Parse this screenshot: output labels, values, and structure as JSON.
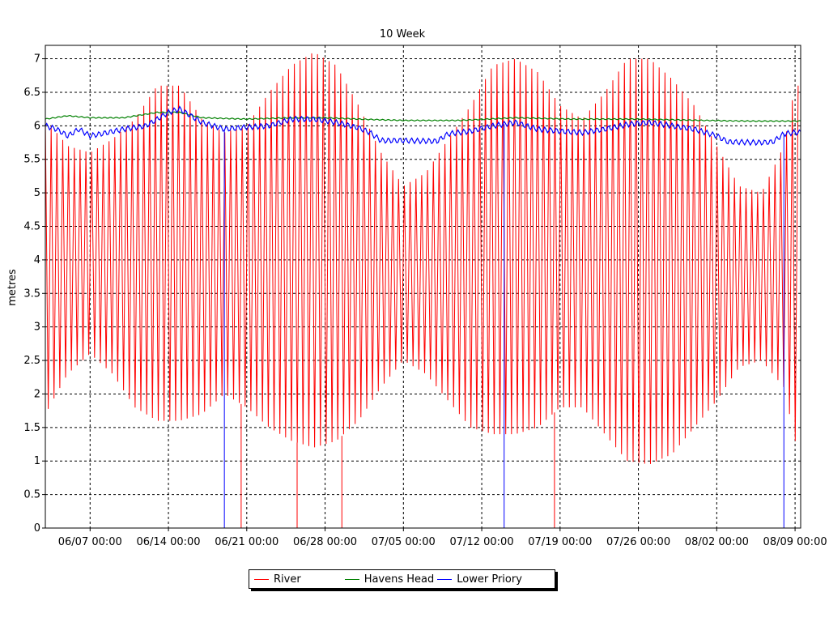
{
  "chart_data": {
    "type": "line",
    "title": "10 Week",
    "ylabel": "metres",
    "xlabel": "",
    "ylim": [
      0,
      7.2
    ],
    "yticks": [
      "0",
      "0.5",
      "1",
      "1.5",
      "2",
      "2.5",
      "3",
      "3.5",
      "4",
      "4.5",
      "5",
      "5.5",
      "6",
      "6.5",
      "7"
    ],
    "x_range": [
      "06/03 00:00",
      "08/09 12:00"
    ],
    "x_tick_labels": [
      "06/07 00:00",
      "06/14 00:00",
      "06/21 00:00",
      "06/28 00:00",
      "07/05 00:00",
      "07/12 00:00",
      "07/19 00:00",
      "07/26 00:00",
      "08/02 00:00",
      "08/09 00:00"
    ],
    "grid": true,
    "legend_position": "bottom-center",
    "series": [
      {
        "name": "River",
        "color": "#ff0000",
        "description_of_shape": "tidal oscillation, two cycles per day",
        "daily_extremes": [
          {
            "date": "06/03",
            "high": 6.1,
            "low": 1.7
          },
          {
            "date": "06/05",
            "high": 5.7,
            "low": 2.3
          },
          {
            "date": "06/07",
            "high": 5.6,
            "low": 2.6
          },
          {
            "date": "06/09",
            "high": 5.8,
            "low": 2.3
          },
          {
            "date": "06/11",
            "high": 6.1,
            "low": 1.8
          },
          {
            "date": "06/13",
            "high": 6.6,
            "low": 1.6
          },
          {
            "date": "06/15",
            "high": 6.6,
            "low": 1.6
          },
          {
            "date": "06/17",
            "high": 6.1,
            "low": 1.7
          },
          {
            "date": "06/19",
            "high": 5.9,
            "low": 2.0
          },
          {
            "date": "06/21",
            "high": 6.0,
            "low": 1.8
          },
          {
            "date": "06/23",
            "high": 6.5,
            "low": 1.5
          },
          {
            "date": "06/25",
            "high": 6.9,
            "low": 1.3
          },
          {
            "date": "06/27",
            "high": 7.1,
            "low": 1.2
          },
          {
            "date": "06/29",
            "high": 6.9,
            "low": 1.3
          },
          {
            "date": "07/01",
            "high": 6.3,
            "low": 1.6
          },
          {
            "date": "07/03",
            "high": 5.6,
            "low": 2.1
          },
          {
            "date": "07/05",
            "high": 5.1,
            "low": 2.5
          },
          {
            "date": "07/07",
            "high": 5.3,
            "low": 2.3
          },
          {
            "date": "07/09",
            "high": 5.8,
            "low": 1.9
          },
          {
            "date": "07/11",
            "high": 6.3,
            "low": 1.5
          },
          {
            "date": "07/13",
            "high": 6.9,
            "low": 1.4
          },
          {
            "date": "07/15",
            "high": 7.0,
            "low": 1.4
          },
          {
            "date": "07/17",
            "high": 6.8,
            "low": 1.5
          },
          {
            "date": "07/19",
            "high": 6.3,
            "low": 1.8
          },
          {
            "date": "07/21",
            "high": 6.1,
            "low": 1.8
          },
          {
            "date": "07/23",
            "high": 6.5,
            "low": 1.4
          },
          {
            "date": "07/25",
            "high": 7.0,
            "low": 1.0
          },
          {
            "date": "07/27",
            "high": 7.0,
            "low": 0.95
          },
          {
            "date": "07/29",
            "high": 6.7,
            "low": 1.1
          },
          {
            "date": "07/31",
            "high": 6.3,
            "low": 1.5
          },
          {
            "date": "08/02",
            "high": 5.7,
            "low": 1.9
          },
          {
            "date": "08/04",
            "high": 5.1,
            "low": 2.4
          },
          {
            "date": "08/06",
            "high": 5.0,
            "low": 2.5
          },
          {
            "date": "08/08",
            "high": 5.7,
            "low": 2.1
          },
          {
            "date": "08/09",
            "high": 6.6,
            "low": 1.3
          }
        ],
        "drop_to_zero_dates": [
          "06/20 12:00",
          "06/25 12:00",
          "06/29 12:00",
          "07/18 12:00"
        ]
      },
      {
        "name": "Havens Head",
        "color": "#008000",
        "points": [
          {
            "date": "06/03",
            "y": 6.1
          },
          {
            "date": "06/05",
            "y": 6.15
          },
          {
            "date": "06/07",
            "y": 6.12
          },
          {
            "date": "06/10",
            "y": 6.12
          },
          {
            "date": "06/13",
            "y": 6.2
          },
          {
            "date": "06/15",
            "y": 6.2
          },
          {
            "date": "06/17",
            "y": 6.12
          },
          {
            "date": "06/21",
            "y": 6.1
          },
          {
            "date": "06/25",
            "y": 6.12
          },
          {
            "date": "06/28",
            "y": 6.12
          },
          {
            "date": "07/01",
            "y": 6.1
          },
          {
            "date": "07/05",
            "y": 6.08
          },
          {
            "date": "07/10",
            "y": 6.08
          },
          {
            "date": "07/15",
            "y": 6.12
          },
          {
            "date": "07/20",
            "y": 6.1
          },
          {
            "date": "07/26",
            "y": 6.1
          },
          {
            "date": "08/01",
            "y": 6.08
          },
          {
            "date": "08/05",
            "y": 6.07
          },
          {
            "date": "08/09",
            "y": 6.07
          }
        ]
      },
      {
        "name": "Lower Priory",
        "color": "#0000ff",
        "points": [
          {
            "date": "06/03",
            "y": 6.0
          },
          {
            "date": "06/04",
            "y": 5.95
          },
          {
            "date": "06/05",
            "y": 5.85
          },
          {
            "date": "06/06",
            "y": 5.95
          },
          {
            "date": "06/07",
            "y": 5.85
          },
          {
            "date": "06/08",
            "y": 5.88
          },
          {
            "date": "06/10",
            "y": 5.95
          },
          {
            "date": "06/12",
            "y": 6.0
          },
          {
            "date": "06/14",
            "y": 6.2
          },
          {
            "date": "06/15",
            "y": 6.25
          },
          {
            "date": "06/17",
            "y": 6.05
          },
          {
            "date": "06/19",
            "y": 5.95
          },
          {
            "date": "06/21",
            "y": 5.98
          },
          {
            "date": "06/23",
            "y": 6.0
          },
          {
            "date": "06/25",
            "y": 6.1
          },
          {
            "date": "06/27",
            "y": 6.1
          },
          {
            "date": "06/29",
            "y": 6.05
          },
          {
            "date": "07/01",
            "y": 5.97
          },
          {
            "date": "07/02",
            "y": 5.9
          },
          {
            "date": "07/03",
            "y": 5.78
          },
          {
            "date": "07/05",
            "y": 5.78
          },
          {
            "date": "07/08",
            "y": 5.77
          },
          {
            "date": "07/09",
            "y": 5.88
          },
          {
            "date": "07/11",
            "y": 5.92
          },
          {
            "date": "07/13",
            "y": 6.0
          },
          {
            "date": "07/15",
            "y": 6.05
          },
          {
            "date": "07/17",
            "y": 5.95
          },
          {
            "date": "07/19",
            "y": 5.92
          },
          {
            "date": "07/21",
            "y": 5.9
          },
          {
            "date": "07/23",
            "y": 5.95
          },
          {
            "date": "07/25",
            "y": 6.02
          },
          {
            "date": "07/27",
            "y": 6.05
          },
          {
            "date": "07/29",
            "y": 6.0
          },
          {
            "date": "07/31",
            "y": 5.95
          },
          {
            "date": "08/02",
            "y": 5.85
          },
          {
            "date": "08/03",
            "y": 5.76
          },
          {
            "date": "08/06",
            "y": 5.75
          },
          {
            "date": "08/07",
            "y": 5.76
          },
          {
            "date": "08/08",
            "y": 5.88
          },
          {
            "date": "08/09",
            "y": 5.9
          }
        ],
        "drop_to_zero_dates": [
          "06/19 00:00",
          "07/14 00:00",
          "08/08 00:00"
        ]
      }
    ]
  }
}
